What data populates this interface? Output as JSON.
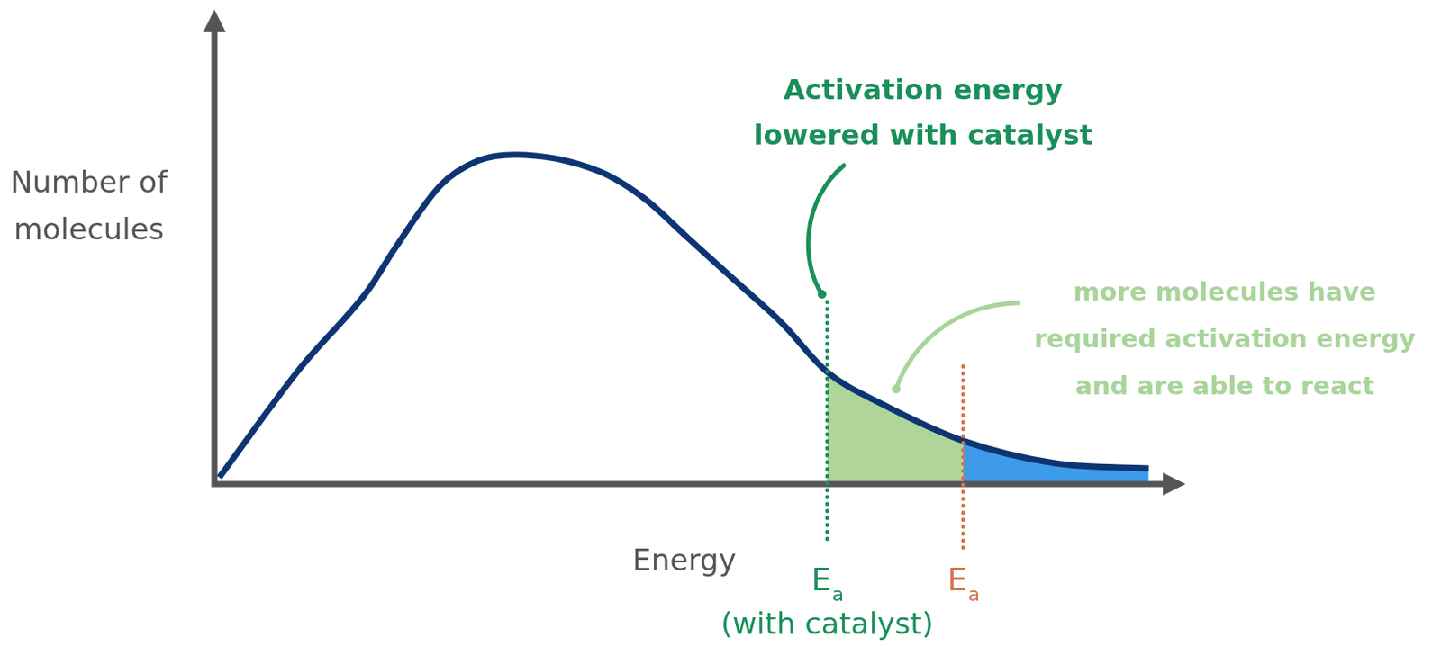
{
  "chart_data": {
    "type": "line",
    "x_label": "Energy",
    "y_label": [
      "Number of",
      "molecules"
    ],
    "x": [
      0.5,
      8.9,
      15.8,
      18.6,
      23.3,
      27.1,
      30.9,
      39.5,
      44.2,
      48.9,
      53.6,
      58.4,
      63.1,
      68.8,
      77.1,
      86.8,
      96.2
    ],
    "values": [
      1.4,
      24.6,
      40.8,
      49.7,
      63,
      68.1,
      69.4,
      66,
      60.3,
      51.6,
      42.9,
      34,
      23.6,
      16.8,
      9.1,
      4.3,
      3.3
    ],
    "color": "#0d3572",
    "xlim": [
      0,
      100
    ],
    "ylim": [
      0,
      100
    ],
    "tick_labels": false,
    "grid": false,
    "regions": [
      {
        "from": 63.1,
        "to": 77.1,
        "color": "#b0d59b"
      },
      {
        "from": 77.1,
        "to": 96.2,
        "color": "#3d9be9"
      }
    ],
    "markers": [
      {
        "x": 63.1,
        "symbol": "E",
        "subscript": "a",
        "note": "(with catalyst)",
        "color": "#1a8f5a",
        "line_style": "dotted"
      },
      {
        "x": 77.1,
        "symbol": "E",
        "subscript": "a",
        "color": "#d9714a",
        "line_style": "dotted"
      }
    ],
    "annotations": [
      {
        "text": [
          "Activation energy",
          "lowered with catalyst"
        ],
        "color": "#1a8f5a"
      },
      {
        "text": [
          "more molecules have",
          "required activation energy",
          "and are able to react"
        ],
        "color": "#a8d49a"
      }
    ]
  }
}
